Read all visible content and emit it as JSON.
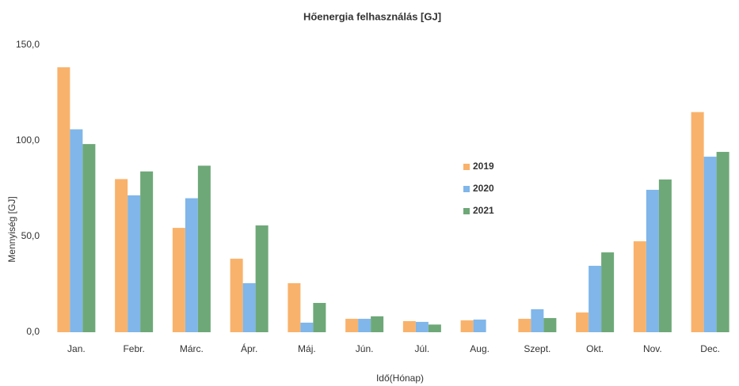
{
  "chart_data": {
    "type": "bar",
    "title": "Hőenergia felhasználás [GJ]",
    "x_label": "Idő(Hónap)",
    "y_label": "Mennyiség [GJ]",
    "categories": [
      "Jan.",
      "Febr.",
      "Márc.",
      "Ápr.",
      "Máj.",
      "Jún.",
      "Júl.",
      "Aug.",
      "Szept.",
      "Okt.",
      "Nov.",
      "Dec."
    ],
    "series": [
      {
        "name": "2019",
        "color": "#f9b26b",
        "values": [
          138.4,
          80,
          54.5,
          38.4,
          25.6,
          7,
          5.8,
          6.2,
          7,
          10.3,
          47.5,
          115
        ]
      },
      {
        "name": "2020",
        "color": "#80b6ea",
        "values": [
          106,
          71.5,
          70,
          25.6,
          5,
          7,
          5.4,
          6.6,
          12,
          34.7,
          74.4,
          91.7
        ]
      },
      {
        "name": "2021",
        "color": "#6ea878",
        "values": [
          98.3,
          84,
          87,
          55.8,
          15.3,
          8.3,
          4,
          null,
          7.4,
          41.7,
          79.8,
          94.2
        ]
      }
    ],
    "ylim": [
      0,
      150
    ],
    "yticks": [
      {
        "value": 0,
        "label": "0,0"
      },
      {
        "value": 50,
        "label": "50,0"
      },
      {
        "value": 100,
        "label": "100,0"
      },
      {
        "value": 150,
        "label": "150,0"
      }
    ],
    "grid": false,
    "legend": "right"
  }
}
